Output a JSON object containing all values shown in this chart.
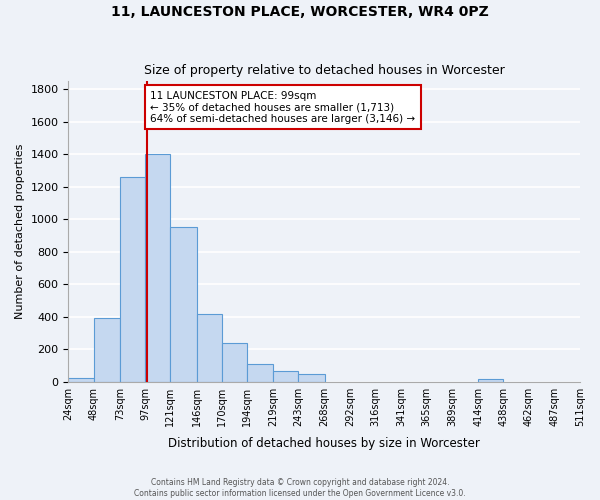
{
  "title": "11, LAUNCESTON PLACE, WORCESTER, WR4 0PZ",
  "subtitle": "Size of property relative to detached houses in Worcester",
  "xlabel": "Distribution of detached houses by size in Worcester",
  "ylabel": "Number of detached properties",
  "bar_values": [
    25,
    390,
    1260,
    1400,
    950,
    415,
    235,
    110,
    65,
    50,
    0,
    0,
    0,
    0,
    0,
    0,
    15,
    0,
    0,
    0
  ],
  "bin_edges": [
    24,
    48,
    73,
    97,
    121,
    146,
    170,
    194,
    219,
    243,
    268,
    292,
    316,
    341,
    365,
    389,
    414,
    438,
    462,
    487,
    511
  ],
  "tick_labels": [
    "24sqm",
    "48sqm",
    "73sqm",
    "97sqm",
    "121sqm",
    "146sqm",
    "170sqm",
    "194sqm",
    "219sqm",
    "243sqm",
    "268sqm",
    "292sqm",
    "316sqm",
    "341sqm",
    "365sqm",
    "389sqm",
    "414sqm",
    "438sqm",
    "462sqm",
    "487sqm",
    "511sqm"
  ],
  "bar_color": "#c5d8f0",
  "bar_edge_color": "#5b9bd5",
  "vline_x": 99,
  "vline_color": "#cc0000",
  "ylim": [
    0,
    1850
  ],
  "yticks": [
    0,
    200,
    400,
    600,
    800,
    1000,
    1200,
    1400,
    1600,
    1800
  ],
  "annotation_text_line1": "11 LAUNCESTON PLACE: 99sqm",
  "annotation_text_line2": "← 35% of detached houses are smaller (1,713)",
  "annotation_text_line3": "64% of semi-detached houses are larger (3,146) →",
  "annotation_box_color": "#cc0000",
  "footer_line1": "Contains HM Land Registry data © Crown copyright and database right 2024.",
  "footer_line2": "Contains public sector information licensed under the Open Government Licence v3.0.",
  "background_color": "#eef2f8",
  "grid_color": "#ffffff"
}
